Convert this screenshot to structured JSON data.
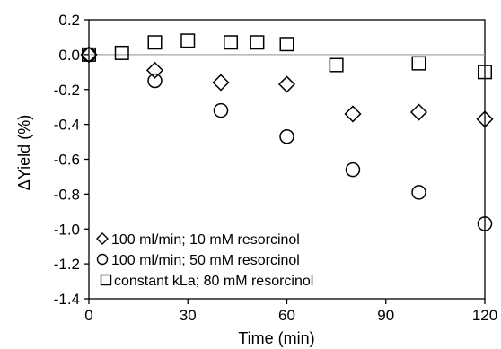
{
  "chart_data": {
    "type": "scatter",
    "title": "",
    "xlabel": "Time (min)",
    "ylabel": "ΔYield (%)",
    "xlim": [
      0,
      120
    ],
    "ylim": [
      -1.4,
      0.2
    ],
    "xticks": [
      0,
      30,
      60,
      90,
      120
    ],
    "yticks": [
      0.2,
      0.0,
      -0.2,
      -0.4,
      -0.6,
      -0.8,
      -1.0,
      -1.2,
      -1.4
    ],
    "xtick_labels": [
      "0",
      "30",
      "60",
      "90",
      "120"
    ],
    "ytick_labels": [
      "0.2",
      "0.0",
      "-0.2",
      "-0.4",
      "-0.6",
      "-0.8",
      "-1.0",
      "-1.2",
      "-1.4"
    ],
    "zero_line": true,
    "grid": false,
    "legend_position": "bottom-left",
    "series": [
      {
        "name": "100 ml/min; 10 mM resorcinol",
        "marker": "diamond",
        "points": [
          [
            0,
            0.0
          ],
          [
            20,
            -0.09
          ],
          [
            40,
            -0.16
          ],
          [
            60,
            -0.17
          ],
          [
            80,
            -0.34
          ],
          [
            100,
            -0.33
          ],
          [
            120,
            -0.37
          ]
        ]
      },
      {
        "name": "100 ml/min; 50 mM resorcinol",
        "marker": "circle",
        "points": [
          [
            0,
            0.0
          ],
          [
            20,
            -0.15
          ],
          [
            40,
            -0.32
          ],
          [
            60,
            -0.47
          ],
          [
            80,
            -0.66
          ],
          [
            100,
            -0.79
          ],
          [
            120,
            -0.97
          ]
        ]
      },
      {
        "name": "constant kLa; 80 mM resorcinol",
        "marker": "square",
        "points": [
          [
            0,
            0.0
          ],
          [
            10,
            0.01
          ],
          [
            20,
            0.07
          ],
          [
            30,
            0.08
          ],
          [
            43,
            0.07
          ],
          [
            51,
            0.07
          ],
          [
            60,
            0.06
          ],
          [
            75,
            -0.06
          ],
          [
            100,
            -0.05
          ],
          [
            120,
            -0.1
          ]
        ]
      }
    ]
  }
}
